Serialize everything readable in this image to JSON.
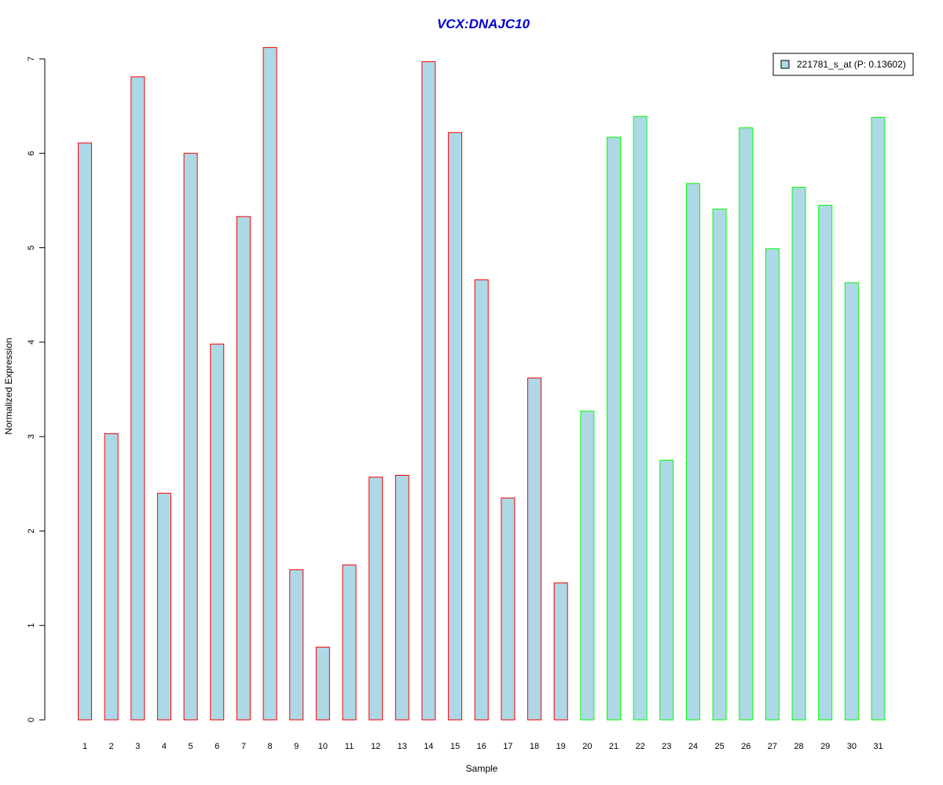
{
  "chart_data": {
    "type": "bar",
    "title": "VCX:DNAJC10",
    "xlabel": "Sample",
    "ylabel": "Normalized Expression",
    "ylim": [
      0,
      7
    ],
    "yticks": [
      "0",
      "1",
      "2",
      "3",
      "4",
      "5",
      "6",
      "7"
    ],
    "categories": [
      "1",
      "2",
      "3",
      "4",
      "5",
      "6",
      "7",
      "8",
      "9",
      "10",
      "11",
      "12",
      "13",
      "14",
      "15",
      "16",
      "17",
      "18",
      "19",
      "20",
      "21",
      "22",
      "23",
      "24",
      "25",
      "26",
      "27",
      "28",
      "29",
      "30",
      "31"
    ],
    "values": [
      6.11,
      3.03,
      6.81,
      2.4,
      6.0,
      3.98,
      5.33,
      7.12,
      1.59,
      0.77,
      1.64,
      2.57,
      2.59,
      6.97,
      6.22,
      4.66,
      2.35,
      3.62,
      1.45,
      3.27,
      6.17,
      6.39,
      2.75,
      5.68,
      5.41,
      6.27,
      4.99,
      5.64,
      5.45,
      4.63,
      6.38
    ],
    "groups": [
      "red",
      "red",
      "red",
      "red",
      "red",
      "red",
      "red",
      "red",
      "red",
      "red",
      "red",
      "red",
      "red",
      "red",
      "red",
      "red",
      "red",
      "red",
      "red",
      "green",
      "green",
      "green",
      "green",
      "green",
      "green",
      "green",
      "green",
      "green",
      "green",
      "green",
      "green"
    ],
    "legend": {
      "label": "221781_s_at (P: 0.13602)",
      "position": "top-right"
    },
    "grid": false
  },
  "colors": {
    "bar_fill": "#add8e6",
    "red_outline": "#ff0000",
    "green_outline": "#00ff00",
    "title": "#0000cd",
    "axis": "#000000"
  }
}
